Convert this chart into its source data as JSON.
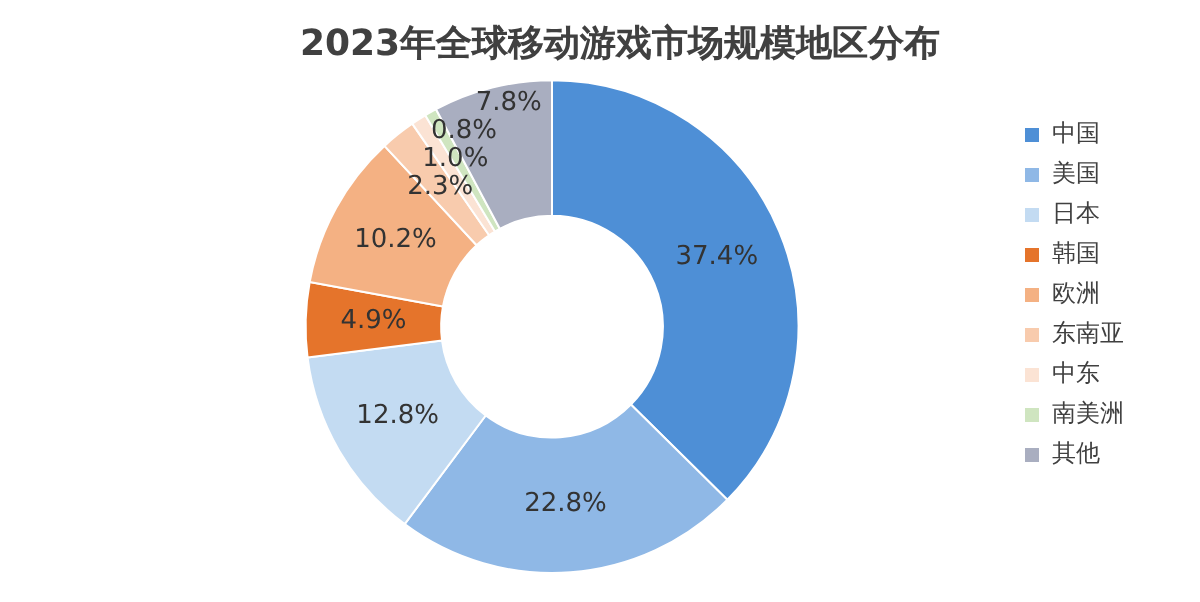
{
  "chart_data": {
    "type": "donut",
    "title": "2023年全球移动游戏市场规模地区分布",
    "categories": [
      "中国",
      "美国",
      "日本",
      "韩国",
      "欧洲",
      "东南亚",
      "中东",
      "南美洲",
      "其他"
    ],
    "values": [
      37.4,
      22.8,
      12.8,
      4.9,
      10.2,
      2.3,
      1.0,
      0.8,
      7.8
    ],
    "colors": [
      "#4e8fd6",
      "#8fb8e6",
      "#c3dbf2",
      "#e5742b",
      "#f4b183",
      "#f8cbad",
      "#fbe3d4",
      "#cfe5c0",
      "#a9aec0"
    ],
    "value_labels": [
      "37.4%",
      "22.8%",
      "12.8%",
      "4.9%",
      "10.2%",
      "2.3%",
      "1.0%",
      "0.8%",
      "7.8%"
    ],
    "legend": "right"
  }
}
